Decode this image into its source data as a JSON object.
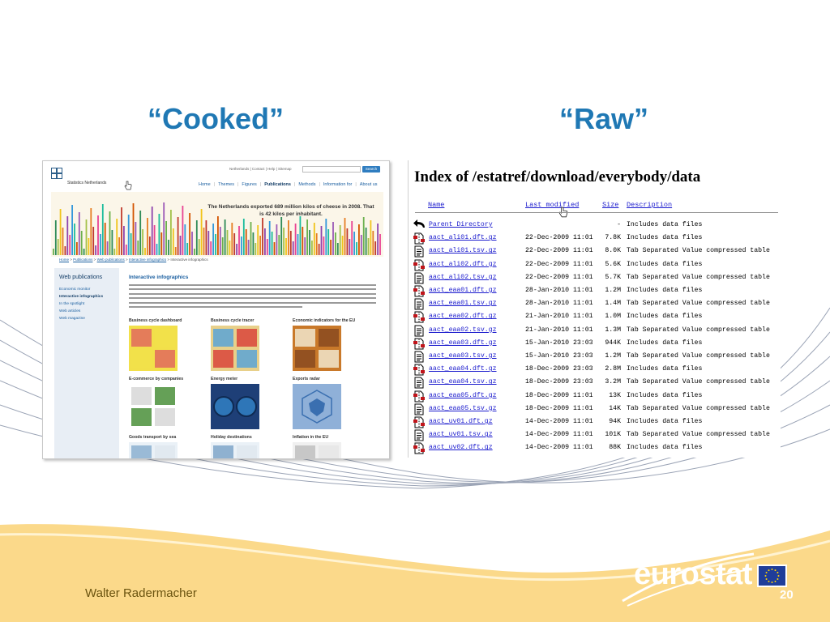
{
  "slide": {
    "heading_cooked": "“Cooked”",
    "heading_raw": "“Raw”",
    "author": "Walter Radermacher",
    "logo_text": "eurostat",
    "page_number": "20",
    "colors": {
      "heading": "#1f78b4",
      "footer_band": "#fbd98a",
      "author": "#6b5410"
    }
  },
  "cooked": {
    "site_name": "Statistics Netherlands",
    "util_links": "Netherlands | Contact | Help | Sitemap",
    "search_button": "Search",
    "nav": [
      "Home",
      "Themes",
      "Figures",
      "Publications",
      "Methods",
      "Information for",
      "About us"
    ],
    "nav_active_index": 3,
    "banner_text": "The Netherlands exported 689 million kilos of cheese in 2008. That is 42 kilos per inhabitant.",
    "breadcrumb": [
      "Home",
      "Publications",
      "Web publications",
      "Interactive infographics",
      "Interactive infographics"
    ],
    "sidebar_title": "Web publications",
    "sidebar_items": [
      "Economic monitor",
      "Interactive infographics",
      "In the spotlight",
      "Web articles",
      "Web magazine"
    ],
    "sidebar_active_index": 1,
    "main_title": "Interactive infographics",
    "cards": [
      "Business cycle dashboard",
      "Business cycle tracer",
      "Economic indicators for the EU",
      "E-commerce by companies",
      "Energy meter",
      "Exports radar",
      "Goods transport by sea",
      "Holiday destinations",
      "Inflation in the EU"
    ]
  },
  "raw": {
    "title": "Index of /estatref/download/everybody/data",
    "columns": [
      "Name",
      "Last modified",
      "Size",
      "Description"
    ],
    "rows": [
      {
        "icon": "back-icon",
        "name": "Parent Directory",
        "date": "",
        "size": "-",
        "desc": "Includes data files"
      },
      {
        "icon": "compressed-icon",
        "name": "aact_ali01.dft.gz",
        "date": "22-Dec-2009 11:01",
        "size": "7.8K",
        "desc": "Includes data files"
      },
      {
        "icon": "text-file-icon",
        "name": "aact_ali01.tsv.gz",
        "date": "22-Dec-2009 11:01",
        "size": "8.0K",
        "desc": "Tab Separated Value compressed table"
      },
      {
        "icon": "compressed-icon",
        "name": "aact_ali02.dft.gz",
        "date": "22-Dec-2009 11:01",
        "size": "5.6K",
        "desc": "Includes data files"
      },
      {
        "icon": "text-file-icon",
        "name": "aact_ali02.tsv.gz",
        "date": "22-Dec-2009 11:01",
        "size": "5.7K",
        "desc": "Tab Separated Value compressed table"
      },
      {
        "icon": "compressed-icon",
        "name": "aact_eaa01.dft.gz",
        "date": "28-Jan-2010 11:01",
        "size": "1.2M",
        "desc": "Includes data files"
      },
      {
        "icon": "text-file-icon",
        "name": "aact_eaa01.tsv.gz",
        "date": "28-Jan-2010 11:01",
        "size": "1.4M",
        "desc": "Tab Separated Value compressed table"
      },
      {
        "icon": "compressed-icon",
        "name": "aact_eaa02.dft.gz",
        "date": "21-Jan-2010 11:01",
        "size": "1.0M",
        "desc": "Includes data files"
      },
      {
        "icon": "text-file-icon",
        "name": "aact_eaa02.tsv.gz",
        "date": "21-Jan-2010 11:01",
        "size": "1.3M",
        "desc": "Tab Separated Value compressed table"
      },
      {
        "icon": "compressed-icon",
        "name": "aact_eaa03.dft.gz",
        "date": "15-Jan-2010 23:03",
        "size": "944K",
        "desc": "Includes data files"
      },
      {
        "icon": "text-file-icon",
        "name": "aact_eaa03.tsv.gz",
        "date": "15-Jan-2010 23:03",
        "size": "1.2M",
        "desc": "Tab Separated Value compressed table"
      },
      {
        "icon": "compressed-icon",
        "name": "aact_eaa04.dft.gz",
        "date": "18-Dec-2009 23:03",
        "size": "2.8M",
        "desc": "Includes data files"
      },
      {
        "icon": "text-file-icon",
        "name": "aact_eaa04.tsv.gz",
        "date": "18-Dec-2009 23:03",
        "size": "3.2M",
        "desc": "Tab Separated Value compressed table"
      },
      {
        "icon": "compressed-icon",
        "name": "aact_eaa05.dft.gz",
        "date": "18-Dec-2009 11:01",
        "size": "13K",
        "desc": "Includes data files"
      },
      {
        "icon": "text-file-icon",
        "name": "aact_eaa05.tsv.gz",
        "date": "18-Dec-2009 11:01",
        "size": "14K",
        "desc": "Tab Separated Value compressed table"
      },
      {
        "icon": "compressed-icon",
        "name": "aact_uv01.dft.gz",
        "date": "14-Dec-2009 11:01",
        "size": "94K",
        "desc": "Includes data files"
      },
      {
        "icon": "text-file-icon",
        "name": "aact_uv01.tsv.gz",
        "date": "14-Dec-2009 11:01",
        "size": "101K",
        "desc": "Tab Separated Value compressed table"
      },
      {
        "icon": "compressed-icon",
        "name": "aact_uv02.dft.gz",
        "date": "14-Dec-2009 11:01",
        "size": "88K",
        "desc": "Includes data files"
      }
    ]
  }
}
